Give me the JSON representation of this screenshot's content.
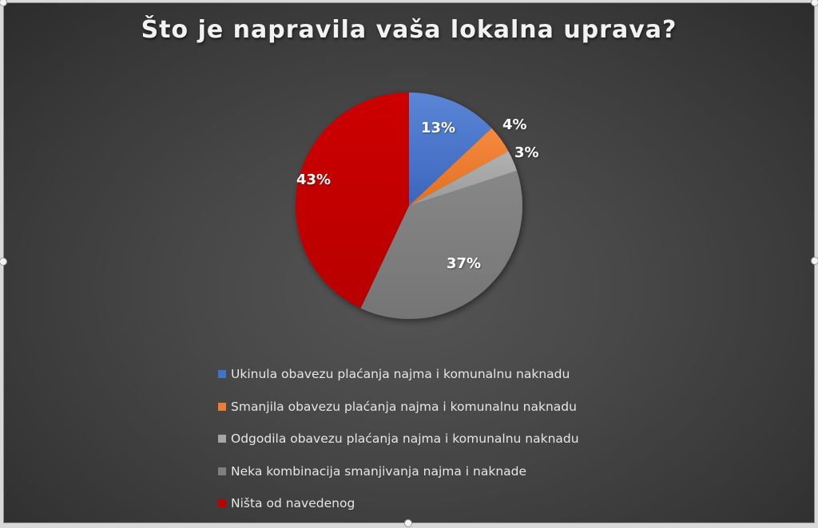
{
  "chart_data": {
    "type": "pie",
    "title": "Što je napravila vaša lokalna uprava?",
    "categories": [
      "Ukinula obavezu plaćanja najma i komunalnu naknadu",
      "Smanjila obavezu plaćanja najma i komunalnu naknadu",
      "Odgodila obavezu plaćanja najma i komunalnu naknadu",
      "Neka kombinacija smanjivanja najma i naknade",
      "Ništa od navedenog"
    ],
    "values": [
      13,
      4,
      3,
      37,
      43
    ],
    "labels": [
      "13%",
      "4%",
      "3%",
      "37%",
      "43%"
    ],
    "colors": [
      "#4472c4",
      "#ed7d31",
      "#a5a5a5",
      "#7f7f7f",
      "#c00000"
    ],
    "start_angle": "12 o'clock, clockwise",
    "legend_position": "bottom"
  },
  "title": "Što je napravila vaša lokalna uprava?",
  "legend": [
    {
      "label": "Ukinula obavezu plaćanja najma i komunalnu naknadu",
      "color": "#4472c4"
    },
    {
      "label": "Smanjila obavezu plaćanja najma i komunalnu naknadu",
      "color": "#ed7d31"
    },
    {
      "label": "Odgodila obavezu plaćanja najma i komunalnu naknadu",
      "color": "#a5a5a5"
    },
    {
      "label": "Neka kombinacija smanjivanja najma i naknade",
      "color": "#7f7f7f"
    },
    {
      "label": "Ništa od navedenog",
      "color": "#c00000"
    }
  ],
  "data_labels": [
    "13%",
    "4%",
    "3%",
    "37%",
    "43%"
  ]
}
